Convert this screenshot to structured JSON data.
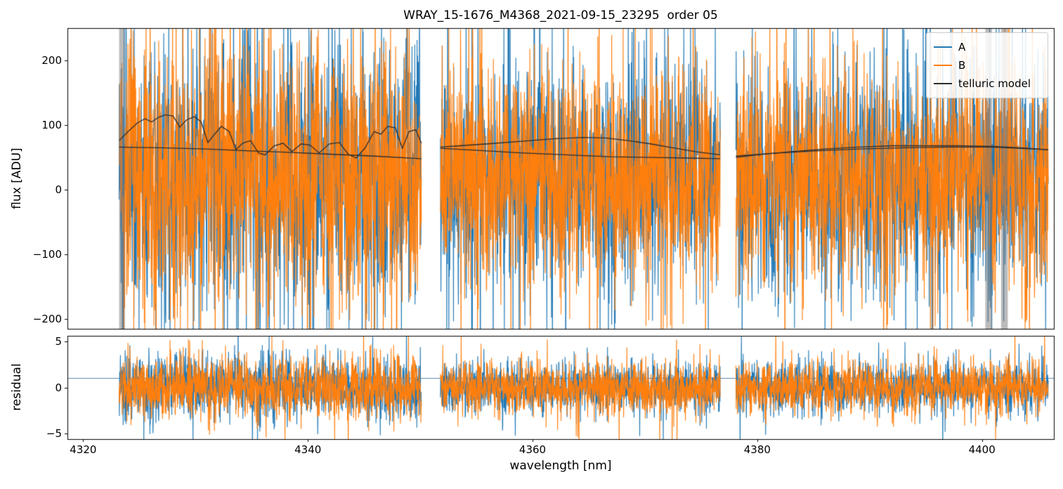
{
  "chart_data": {
    "type": "line",
    "title": "WRAY_15-1676_M4368_2021-09-15_23295  order 05",
    "xlabel": "wavelength [nm]",
    "xlim": [
      4318.6,
      4406.4
    ],
    "xticks": [
      {
        "v": 4320,
        "label": "4320"
      },
      {
        "v": 4340,
        "label": "4340"
      },
      {
        "v": 4360,
        "label": "4360"
      },
      {
        "v": 4380,
        "label": "4380"
      },
      {
        "v": 4400,
        "label": "4400"
      }
    ],
    "panels": [
      {
        "name": "flux",
        "ylabel": "flux [ADU]",
        "ylim": [
          -215,
          250
        ],
        "yticks": [
          {
            "v": 200,
            "label": "200"
          },
          {
            "v": 100,
            "label": "100"
          },
          {
            "v": 0,
            "label": "0"
          },
          {
            "v": -100,
            "label": "−100"
          },
          {
            "v": -200,
            "label": "−200"
          }
        ]
      },
      {
        "name": "residual",
        "ylabel": "residual",
        "ylim": [
          -5.6,
          5.6
        ],
        "yticks": [
          {
            "v": 5,
            "label": "5"
          },
          {
            "v": 0,
            "label": "0"
          },
          {
            "v": -5,
            "label": "−5"
          }
        ],
        "hline": {
          "y": 1,
          "color": "#5b87b0"
        }
      }
    ],
    "segments": [
      {
        "x0": 4323.2,
        "x1": 4350.1
      },
      {
        "x0": 4351.8,
        "x1": 4376.7
      },
      {
        "x0": 4378.1,
        "x1": 4405.9
      }
    ],
    "series": [
      {
        "name": "A",
        "color": "#1f77b4"
      },
      {
        "name": "B",
        "color": "#ff7f0e"
      },
      {
        "name": "telluric model",
        "color": "#2d2d2d"
      }
    ],
    "legend": {
      "position": "upper right"
    },
    "masked_regions": [
      [
        4323.2,
        4323.7
      ],
      [
        4400.3,
        4400.9
      ],
      [
        4401.7,
        4402.3
      ]
    ],
    "noise": {
      "points_per_segment": 1200,
      "flux": {
        "mean": 18,
        "sigma": 85,
        "spike_prob": 0.05,
        "spike_scale": 2.4,
        "segment_scale": [
          1.25,
          1.0,
          1.05
        ],
        "seed_A": 20210915,
        "seed_B": 23295
      },
      "residual": {
        "mean": 0,
        "sigma": 1.45,
        "spike_prob": 0.03,
        "spike_scale": 2.3,
        "segment_scale": [
          1.2,
          0.95,
          1.0
        ],
        "seed_A": 4368,
        "seed_B": 1676
      }
    },
    "telluric_model": {
      "upper": [
        [
          [
            4323.2,
            76
          ],
          [
            4324.0,
            90
          ],
          [
            4324.8,
            103
          ],
          [
            4325.5,
            110
          ],
          [
            4326.1,
            105
          ],
          [
            4326.7,
            112
          ],
          [
            4327.3,
            116
          ],
          [
            4328.0,
            114
          ],
          [
            4328.6,
            97
          ],
          [
            4329.2,
            108
          ],
          [
            4329.9,
            113
          ],
          [
            4330.5,
            105
          ],
          [
            4331.1,
            73
          ],
          [
            4331.7,
            86
          ],
          [
            4332.3,
            98
          ],
          [
            4333.0,
            90
          ],
          [
            4333.6,
            62
          ],
          [
            4334.2,
            72
          ],
          [
            4334.9,
            76
          ],
          [
            4335.6,
            57
          ],
          [
            4336.2,
            54
          ],
          [
            4337.0,
            68
          ],
          [
            4337.8,
            72
          ],
          [
            4338.6,
            59
          ],
          [
            4339.4,
            71
          ],
          [
            4340.2,
            69
          ],
          [
            4341.0,
            57
          ],
          [
            4341.9,
            71
          ],
          [
            4342.8,
            73
          ],
          [
            4343.6,
            55
          ],
          [
            4344.3,
            49
          ],
          [
            4345.1,
            65
          ],
          [
            4345.9,
            90
          ],
          [
            4346.5,
            86
          ],
          [
            4347.1,
            98
          ],
          [
            4347.8,
            96
          ],
          [
            4348.4,
            64
          ],
          [
            4349.0,
            90
          ],
          [
            4349.6,
            93
          ],
          [
            4350.1,
            72
          ]
        ],
        [
          [
            4351.8,
            66
          ],
          [
            4353.5,
            68
          ],
          [
            4356,
            71
          ],
          [
            4359,
            75
          ],
          [
            4362,
            79
          ],
          [
            4364.5,
            81
          ],
          [
            4366.5,
            80
          ],
          [
            4368.5,
            76
          ],
          [
            4370.5,
            71
          ],
          [
            4372.5,
            65
          ],
          [
            4374.5,
            59
          ],
          [
            4376.7,
            54
          ]
        ],
        [
          [
            4378.1,
            50
          ],
          [
            4380,
            54
          ],
          [
            4383,
            59
          ],
          [
            4386,
            63
          ],
          [
            4389,
            66
          ],
          [
            4392,
            68
          ],
          [
            4395,
            68
          ],
          [
            4398,
            68
          ],
          [
            4401,
            67
          ],
          [
            4403.5,
            65
          ],
          [
            4405.9,
            62
          ]
        ]
      ],
      "lower": [
        [
          [
            4323.2,
            66
          ],
          [
            4327,
            65
          ],
          [
            4331,
            63
          ],
          [
            4335,
            60
          ],
          [
            4338,
            58
          ],
          [
            4342,
            55
          ],
          [
            4346,
            52
          ],
          [
            4350.1,
            48
          ]
        ],
        [
          [
            4351.8,
            64
          ],
          [
            4355,
            61
          ],
          [
            4359,
            57
          ],
          [
            4363,
            54
          ],
          [
            4367,
            51
          ],
          [
            4371,
            50
          ],
          [
            4374,
            49
          ],
          [
            4376.7,
            48
          ]
        ],
        [
          [
            4378.1,
            52
          ],
          [
            4381,
            56
          ],
          [
            4385,
            60
          ],
          [
            4389,
            63
          ],
          [
            4393,
            65
          ],
          [
            4397,
            66
          ],
          [
            4401,
            66
          ],
          [
            4405.9,
            62
          ]
        ]
      ]
    }
  }
}
